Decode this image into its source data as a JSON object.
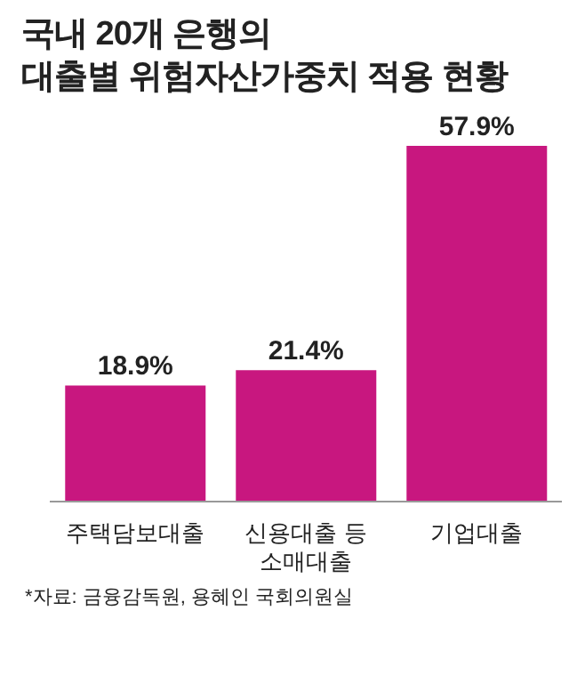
{
  "chart_data": {
    "type": "bar",
    "title": "국내 20개 은행의\n대출별 위험자산가중치 적용 현황",
    "categories": [
      "주택담보대출",
      "신용대출 등 소매대출",
      "기업대출"
    ],
    "values": [
      18.9,
      21.4,
      57.9
    ],
    "value_labels": [
      "18.9%",
      "21.4%",
      "57.9%"
    ],
    "color": "#c8177f",
    "annotations": [
      "*자료: 금융감독원, 용혜인 국회의원실"
    ]
  }
}
